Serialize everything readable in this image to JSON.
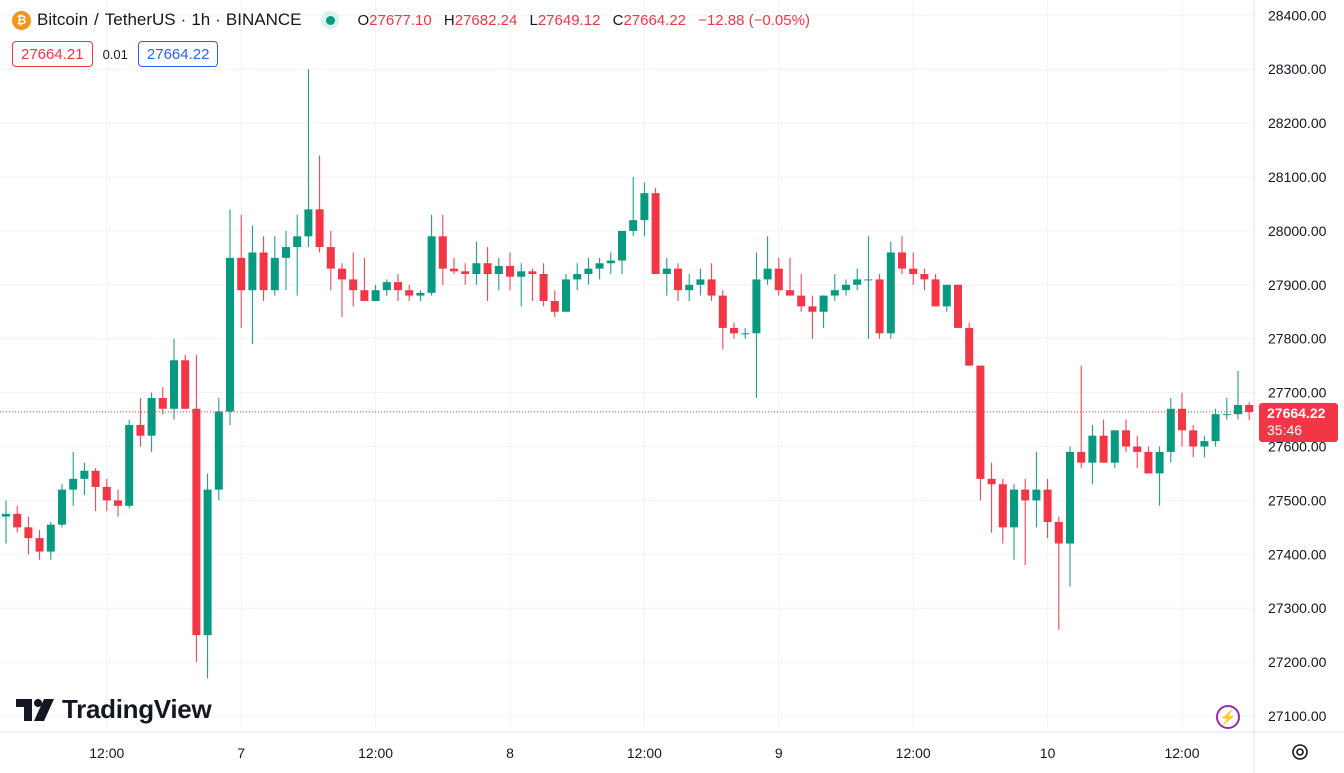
{
  "header": {
    "symbol": "Bitcoin",
    "separator": "/",
    "quote": "TetherUS",
    "interval": "1h",
    "exchange": "BINANCE",
    "ohlc": {
      "o_label": "O",
      "o": "27677.10",
      "h_label": "H",
      "h": "27682.24",
      "l_label": "L",
      "l": "27649.12",
      "c_label": "C",
      "c": "27664.22",
      "change": "−12.88 (−0.05%)"
    }
  },
  "trade": {
    "sell_price": "27664.21",
    "spread": "0.01",
    "buy_price": "27664.22"
  },
  "price_tag": {
    "price": "27664.22",
    "countdown": "35:46"
  },
  "branding": {
    "logo_text": "TradingView"
  },
  "icons": {
    "coin": "bitcoin-icon",
    "status": "market-open-dot-icon",
    "bolt": "lightning-icon",
    "settings": "gear-icon"
  },
  "colors": {
    "up": "#089981",
    "down": "#f23645",
    "grid": "#f0f3fa",
    "text": "#131722"
  },
  "chart_data": {
    "type": "candlestick",
    "interval": "1h",
    "y_ticks": [
      27100,
      27200,
      27300,
      27400,
      27500,
      27600,
      27700,
      27800,
      27900,
      28000,
      28100,
      28200,
      28300,
      28400
    ],
    "y_tick_labels": [
      "27100.00",
      "27200.00",
      "27300.00",
      "27400.00",
      "27500.00",
      "27600.00",
      "27700.00",
      "27800.00",
      "27900.00",
      "28000.00",
      "28100.00",
      "28200.00",
      "28300.00",
      "28400.00"
    ],
    "ylim": [
      27050,
      28430
    ],
    "x_ticks": [
      {
        "label": "12:00",
        "index": 9
      },
      {
        "label": "7",
        "index": 21
      },
      {
        "label": "12:00",
        "index": 33
      },
      {
        "label": "8",
        "index": 45
      },
      {
        "label": "12:00",
        "index": 57
      },
      {
        "label": "9",
        "index": 69
      },
      {
        "label": "12:00",
        "index": 81
      },
      {
        "label": "10",
        "index": 93
      },
      {
        "label": "12:00",
        "index": 105
      }
    ],
    "last_price": 27664.22,
    "candles": [
      [
        27470,
        27500,
        27420,
        27475
      ],
      [
        27475,
        27490,
        27440,
        27450
      ],
      [
        27450,
        27470,
        27400,
        27430
      ],
      [
        27430,
        27445,
        27390,
        27405
      ],
      [
        27405,
        27460,
        27390,
        27455
      ],
      [
        27455,
        27530,
        27450,
        27520
      ],
      [
        27520,
        27590,
        27490,
        27540
      ],
      [
        27540,
        27570,
        27510,
        27555
      ],
      [
        27555,
        27560,
        27480,
        27525
      ],
      [
        27525,
        27540,
        27480,
        27500
      ],
      [
        27500,
        27520,
        27470,
        27490
      ],
      [
        27490,
        27650,
        27485,
        27640
      ],
      [
        27640,
        27690,
        27600,
        27620
      ],
      [
        27620,
        27700,
        27590,
        27690
      ],
      [
        27690,
        27710,
        27660,
        27670
      ],
      [
        27670,
        27800,
        27650,
        27760
      ],
      [
        27760,
        27770,
        27670,
        27670
      ],
      [
        27670,
        27770,
        27200,
        27250
      ],
      [
        27250,
        27550,
        27170,
        27520
      ],
      [
        27520,
        27690,
        27500,
        27665
      ],
      [
        27665,
        28040,
        27640,
        27950
      ],
      [
        27950,
        28030,
        27820,
        27890
      ],
      [
        27890,
        28010,
        27790,
        27960
      ],
      [
        27960,
        27990,
        27870,
        27890
      ],
      [
        27890,
        27990,
        27880,
        27950
      ],
      [
        27950,
        28000,
        27890,
        27970
      ],
      [
        27970,
        28030,
        27880,
        27990
      ],
      [
        27990,
        28300,
        27970,
        28040
      ],
      [
        28040,
        28140,
        27960,
        27970
      ],
      [
        27970,
        28000,
        27890,
        27930
      ],
      [
        27930,
        27940,
        27840,
        27910
      ],
      [
        27910,
        27960,
        27860,
        27890
      ],
      [
        27890,
        27950,
        27870,
        27870
      ],
      [
        27870,
        27900,
        27870,
        27890
      ],
      [
        27890,
        27910,
        27880,
        27905
      ],
      [
        27905,
        27920,
        27870,
        27890
      ],
      [
        27890,
        27900,
        27870,
        27880
      ],
      [
        27880,
        27890,
        27870,
        27885
      ],
      [
        27885,
        28030,
        27880,
        27990
      ],
      [
        27990,
        28030,
        27900,
        27930
      ],
      [
        27930,
        27950,
        27920,
        27925
      ],
      [
        27925,
        27940,
        27900,
        27920
      ],
      [
        27920,
        27980,
        27900,
        27940
      ],
      [
        27940,
        27970,
        27870,
        27920
      ],
      [
        27920,
        27950,
        27890,
        27935
      ],
      [
        27935,
        27960,
        27890,
        27915
      ],
      [
        27915,
        27940,
        27860,
        27925
      ],
      [
        27925,
        27930,
        27870,
        27920
      ],
      [
        27920,
        27940,
        27860,
        27870
      ],
      [
        27870,
        27890,
        27840,
        27850
      ],
      [
        27850,
        27920,
        27850,
        27910
      ],
      [
        27910,
        27940,
        27890,
        27920
      ],
      [
        27920,
        27950,
        27900,
        27930
      ],
      [
        27930,
        27950,
        27910,
        27940
      ],
      [
        27940,
        27960,
        27920,
        27945
      ],
      [
        27945,
        28000,
        27920,
        28000
      ],
      [
        28000,
        28100,
        27990,
        28020
      ],
      [
        28020,
        28090,
        27990,
        28070
      ],
      [
        28070,
        28080,
        27920,
        27920
      ],
      [
        27920,
        27950,
        27880,
        27930
      ],
      [
        27930,
        27940,
        27870,
        27890
      ],
      [
        27890,
        27920,
        27870,
        27900
      ],
      [
        27900,
        27930,
        27880,
        27910
      ],
      [
        27910,
        27940,
        27870,
        27880
      ],
      [
        27880,
        27890,
        27780,
        27820
      ],
      [
        27820,
        27830,
        27800,
        27810
      ],
      [
        27810,
        27820,
        27800,
        27810
      ],
      [
        27810,
        27960,
        27690,
        27910
      ],
      [
        27910,
        27990,
        27900,
        27930
      ],
      [
        27930,
        27950,
        27880,
        27890
      ],
      [
        27890,
        27950,
        27880,
        27880
      ],
      [
        27880,
        27920,
        27850,
        27860
      ],
      [
        27860,
        27880,
        27800,
        27850
      ],
      [
        27850,
        27880,
        27820,
        27880
      ],
      [
        27880,
        27920,
        27870,
        27890
      ],
      [
        27890,
        27910,
        27880,
        27900
      ],
      [
        27900,
        27930,
        27890,
        27910
      ],
      [
        27910,
        27990,
        27800,
        27910
      ],
      [
        27910,
        27920,
        27800,
        27810
      ],
      [
        27810,
        27980,
        27800,
        27960
      ],
      [
        27960,
        27990,
        27920,
        27930
      ],
      [
        27930,
        27960,
        27900,
        27920
      ],
      [
        27920,
        27930,
        27890,
        27910
      ],
      [
        27910,
        27920,
        27860,
        27860
      ],
      [
        27860,
        27900,
        27850,
        27900
      ],
      [
        27900,
        27900,
        27820,
        27820
      ],
      [
        27820,
        27830,
        27750,
        27750
      ],
      [
        27750,
        27750,
        27500,
        27540
      ],
      [
        27540,
        27570,
        27440,
        27530
      ],
      [
        27530,
        27540,
        27420,
        27450
      ],
      [
        27450,
        27530,
        27390,
        27520
      ],
      [
        27520,
        27540,
        27380,
        27500
      ],
      [
        27500,
        27590,
        27450,
        27520
      ],
      [
        27520,
        27540,
        27430,
        27460
      ],
      [
        27460,
        27470,
        27260,
        27420
      ],
      [
        27420,
        27600,
        27340,
        27590
      ],
      [
        27590,
        27750,
        27560,
        27570
      ],
      [
        27570,
        27640,
        27530,
        27620
      ],
      [
        27620,
        27650,
        27570,
        27570
      ],
      [
        27570,
        27630,
        27560,
        27630
      ],
      [
        27630,
        27650,
        27590,
        27600
      ],
      [
        27600,
        27620,
        27560,
        27590
      ],
      [
        27590,
        27600,
        27550,
        27550
      ],
      [
        27550,
        27600,
        27490,
        27590
      ],
      [
        27590,
        27690,
        27570,
        27670
      ],
      [
        27670,
        27700,
        27600,
        27630
      ],
      [
        27630,
        27640,
        27580,
        27600
      ],
      [
        27600,
        27620,
        27580,
        27610
      ],
      [
        27610,
        27670,
        27600,
        27660
      ],
      [
        27660,
        27690,
        27650,
        27660
      ],
      [
        27660,
        27740,
        27650,
        27677
      ],
      [
        27677,
        27682,
        27649,
        27664
      ]
    ]
  }
}
